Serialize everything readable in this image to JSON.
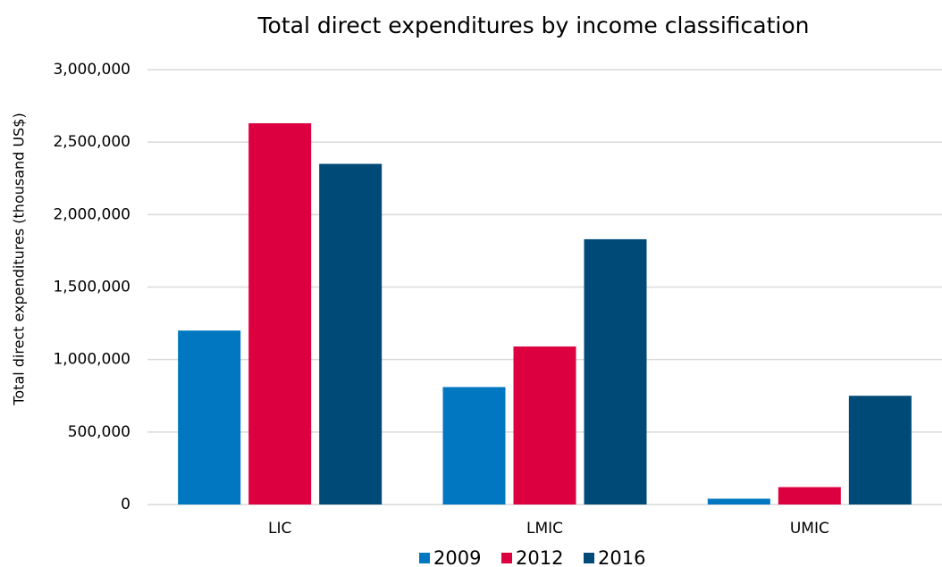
{
  "chart_data": {
    "type": "bar",
    "title": "Total direct expenditures by income classification",
    "ylabel": "Total direct expenditures (thousand US$)",
    "categories": [
      "LIC",
      "LMIC",
      "UMIC"
    ],
    "series": [
      {
        "name": "2009",
        "color": "#0077c0",
        "values": [
          1200000,
          810000,
          40000
        ]
      },
      {
        "name": "2012",
        "color": "#dc0040",
        "values": [
          2630000,
          1090000,
          120000
        ]
      },
      {
        "name": "2016",
        "color": "#004a78",
        "values": [
          2350000,
          1830000,
          750000
        ]
      }
    ],
    "ylim": [
      0,
      3000000
    ],
    "yticks": [
      0,
      {
        "value": 500000,
        "label": "500,000"
      },
      {
        "value": 1000000,
        "label": "1,000,000"
      },
      {
        "value": 1500000,
        "label": "1,500,000"
      },
      {
        "value": 2000000,
        "label": "2,000,000"
      },
      {
        "value": 2500000,
        "label": "2,500,000"
      },
      {
        "value": 3000000,
        "label": "3,000,000"
      }
    ],
    "grid": true,
    "legend": "bottom"
  }
}
